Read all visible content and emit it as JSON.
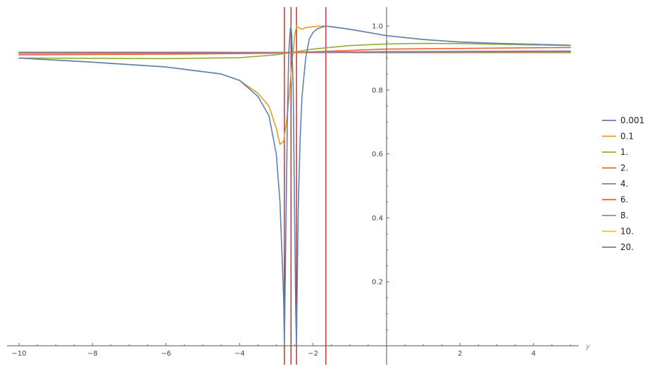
{
  "chart_data": {
    "type": "line",
    "title": "",
    "xlabel": "y",
    "ylabel": "",
    "xlim": [
      -10,
      5
    ],
    "ylim": [
      0,
      1.05
    ],
    "x_ticks": [
      "-10",
      "-8",
      "-6",
      "-4",
      "-2",
      "2",
      "4"
    ],
    "y_ticks": [
      "0.2",
      "0.4",
      "0.6",
      "0.8",
      "1.0"
    ],
    "grid": false,
    "legend_position": "right",
    "vertical_lines": [
      -2.78,
      -2.6,
      -2.45,
      -1.65
    ],
    "vertical_line_color": "#c00000",
    "series": [
      {
        "name": "0.001",
        "color": "#5e81b5",
        "x": [
          -10,
          -8,
          -6,
          -4.5,
          -4,
          -3.5,
          -3.2,
          -3,
          -2.9,
          -2.8,
          -2.78,
          -2.74,
          -2.7,
          -2.66,
          -2.62,
          -2.6,
          -2.58,
          -2.54,
          -2.5,
          -2.47,
          -2.45,
          -2.43,
          -2.4,
          -2.35,
          -2.3,
          -2.2,
          -2.1,
          -2.0,
          -1.9,
          -1.8,
          -1.65,
          -1.5,
          -1.0,
          0,
          1,
          2,
          3,
          4,
          5
        ],
        "y": [
          0.9,
          0.887,
          0.872,
          0.85,
          0.83,
          0.78,
          0.72,
          0.6,
          0.45,
          0.15,
          0.0,
          0.35,
          0.7,
          0.92,
          0.99,
          1.0,
          0.97,
          0.8,
          0.4,
          0.1,
          0.0,
          0.2,
          0.45,
          0.65,
          0.78,
          0.9,
          0.96,
          0.98,
          0.99,
          0.995,
          1.0,
          0.998,
          0.99,
          0.97,
          0.958,
          0.95,
          0.946,
          0.943,
          0.94
        ]
      },
      {
        "name": "0.1",
        "color": "#e19c24",
        "x": [
          -10,
          -8,
          -6,
          -4.5,
          -4,
          -3.5,
          -3.2,
          -3.0,
          -2.9,
          -2.8,
          -2.7,
          -2.6,
          -2.5,
          -2.45,
          -2.4,
          -2.3,
          -2.2,
          -2.0,
          -1.8,
          -1.65,
          -1.5,
          -1.0,
          0,
          1,
          2,
          3,
          4,
          5
        ],
        "y": [
          0.9,
          0.887,
          0.872,
          0.85,
          0.83,
          0.79,
          0.75,
          0.68,
          0.63,
          0.64,
          0.72,
          0.85,
          0.97,
          1.0,
          0.995,
          0.99,
          0.995,
          0.998,
          1.0,
          1.0,
          0.998,
          0.99,
          0.97,
          0.958,
          0.95,
          0.946,
          0.943,
          0.94
        ]
      },
      {
        "name": "1.",
        "color": "#8fb032",
        "x": [
          -10,
          -8,
          -6,
          -4,
          -3,
          -2.6,
          -2,
          -1,
          0,
          1,
          2,
          3,
          4,
          5
        ],
        "y": [
          0.9,
          0.899,
          0.898,
          0.901,
          0.91,
          0.917,
          0.928,
          0.939,
          0.944,
          0.946,
          0.945,
          0.943,
          0.941,
          0.939
        ]
      },
      {
        "name": "2.",
        "color": "#eb6235",
        "x": [
          -10,
          -6,
          -3,
          -2.6,
          0,
          5
        ],
        "y": [
          0.91,
          0.912,
          0.915,
          0.917,
          0.928,
          0.933
        ]
      },
      {
        "name": "4.",
        "color": "#8778b3",
        "x": [
          -10,
          -5,
          -2.6,
          0,
          5
        ],
        "y": [
          0.915,
          0.916,
          0.917,
          0.92,
          0.922
        ]
      },
      {
        "name": "6.",
        "color": "#c56e1a",
        "x": [
          -10,
          -5,
          -2.6,
          0,
          5
        ],
        "y": [
          0.916,
          0.917,
          0.917,
          0.919,
          0.92
        ]
      },
      {
        "name": "8.",
        "color": "#5d9ec7",
        "x": [
          -10,
          -5,
          -2.6,
          0,
          5
        ],
        "y": [
          0.917,
          0.917,
          0.917,
          0.918,
          0.919
        ]
      },
      {
        "name": "10.",
        "color": "#ffbf00",
        "x": [
          -10,
          -5,
          -2.6,
          0,
          5
        ],
        "y": [
          0.917,
          0.917,
          0.917,
          0.918,
          0.918
        ]
      },
      {
        "name": "20.",
        "color": "#a5609d",
        "x": [
          -10,
          -5,
          -2.6,
          0,
          5
        ],
        "y": [
          0.918,
          0.918,
          0.917,
          0.917,
          0.917
        ]
      }
    ]
  }
}
